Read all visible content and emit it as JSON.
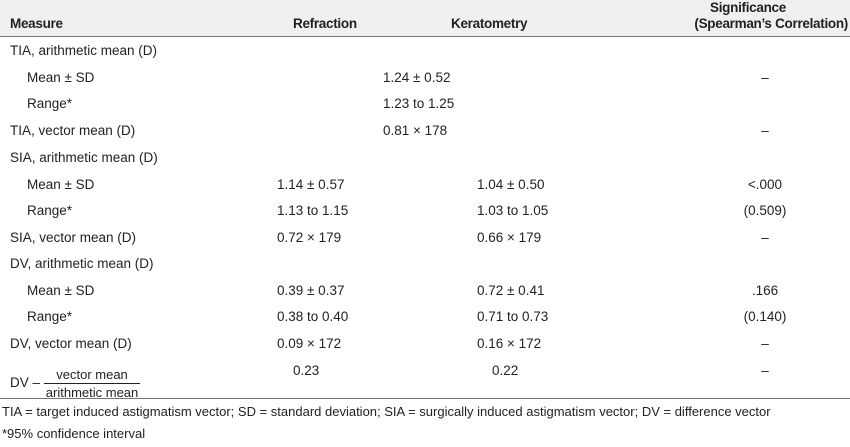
{
  "header": {
    "measure": "Measure",
    "refraction": "Refraction",
    "keratometry": "Keratometry",
    "significance_line1": "Significance",
    "significance_line2": "(Spearman’s Correlation)"
  },
  "rows": [
    {
      "label": "TIA, arithmetic mean (D)",
      "indent": false,
      "refraction": "",
      "keratometry": "",
      "merged": "",
      "significance": ""
    },
    {
      "label": "Mean ± SD",
      "indent": true,
      "merged": "1.24  ± 0.52",
      "significance": "–"
    },
    {
      "label": "Range*",
      "indent": true,
      "merged": "1.23 to 1.25",
      "significance": ""
    },
    {
      "label": "TIA, vector mean (D)",
      "indent": false,
      "merged": "0.81  × 178",
      "significance": "–"
    },
    {
      "label": "SIA, arithmetic mean (D)",
      "indent": false,
      "refraction": "",
      "keratometry": "",
      "significance": ""
    },
    {
      "label": "Mean ± SD",
      "indent": true,
      "refraction": "1.14  ± 0.57",
      "keratometry": "1.04  ± 0.50",
      "significance": "<.000"
    },
    {
      "label": "Range*",
      "indent": true,
      "refraction": "1.13 to 1.15",
      "keratometry": "1.03 to 1.05",
      "significance": "(0.509)"
    },
    {
      "label": "SIA, vector mean (D)",
      "indent": false,
      "refraction": "0.72  × 179",
      "keratometry": "0.66  × 179",
      "significance": "–"
    },
    {
      "label": "DV, arithmetic mean (D)",
      "indent": false,
      "refraction": "",
      "keratometry": "",
      "significance": ""
    },
    {
      "label": "Mean ± SD",
      "indent": true,
      "refraction": "0.39  ± 0.37",
      "keratometry": "0.72  ± 0.41",
      "significance": ".166"
    },
    {
      "label": "Range*",
      "indent": true,
      "refraction": "0.38 to 0.40",
      "keratometry": "0.71 to 0.73",
      "significance": "(0.140)"
    },
    {
      "label": "DV, vector mean (D)",
      "indent": false,
      "refraction": "0.09  × 172",
      "keratometry": "0.16  × 172",
      "significance": "–"
    }
  ],
  "ratio_row": {
    "prefix": "DV –",
    "numerator": "vector mean",
    "denominator": "arithmetic mean",
    "refraction": "0.23",
    "keratometry": "0.22",
    "significance": "–"
  },
  "footnotes": [
    "TIA = target induced astigmatism vector; SD = standard deviation; SIA = surgically induced astigmatism vector; DV = difference vector",
    "*95% confidence interval"
  ]
}
